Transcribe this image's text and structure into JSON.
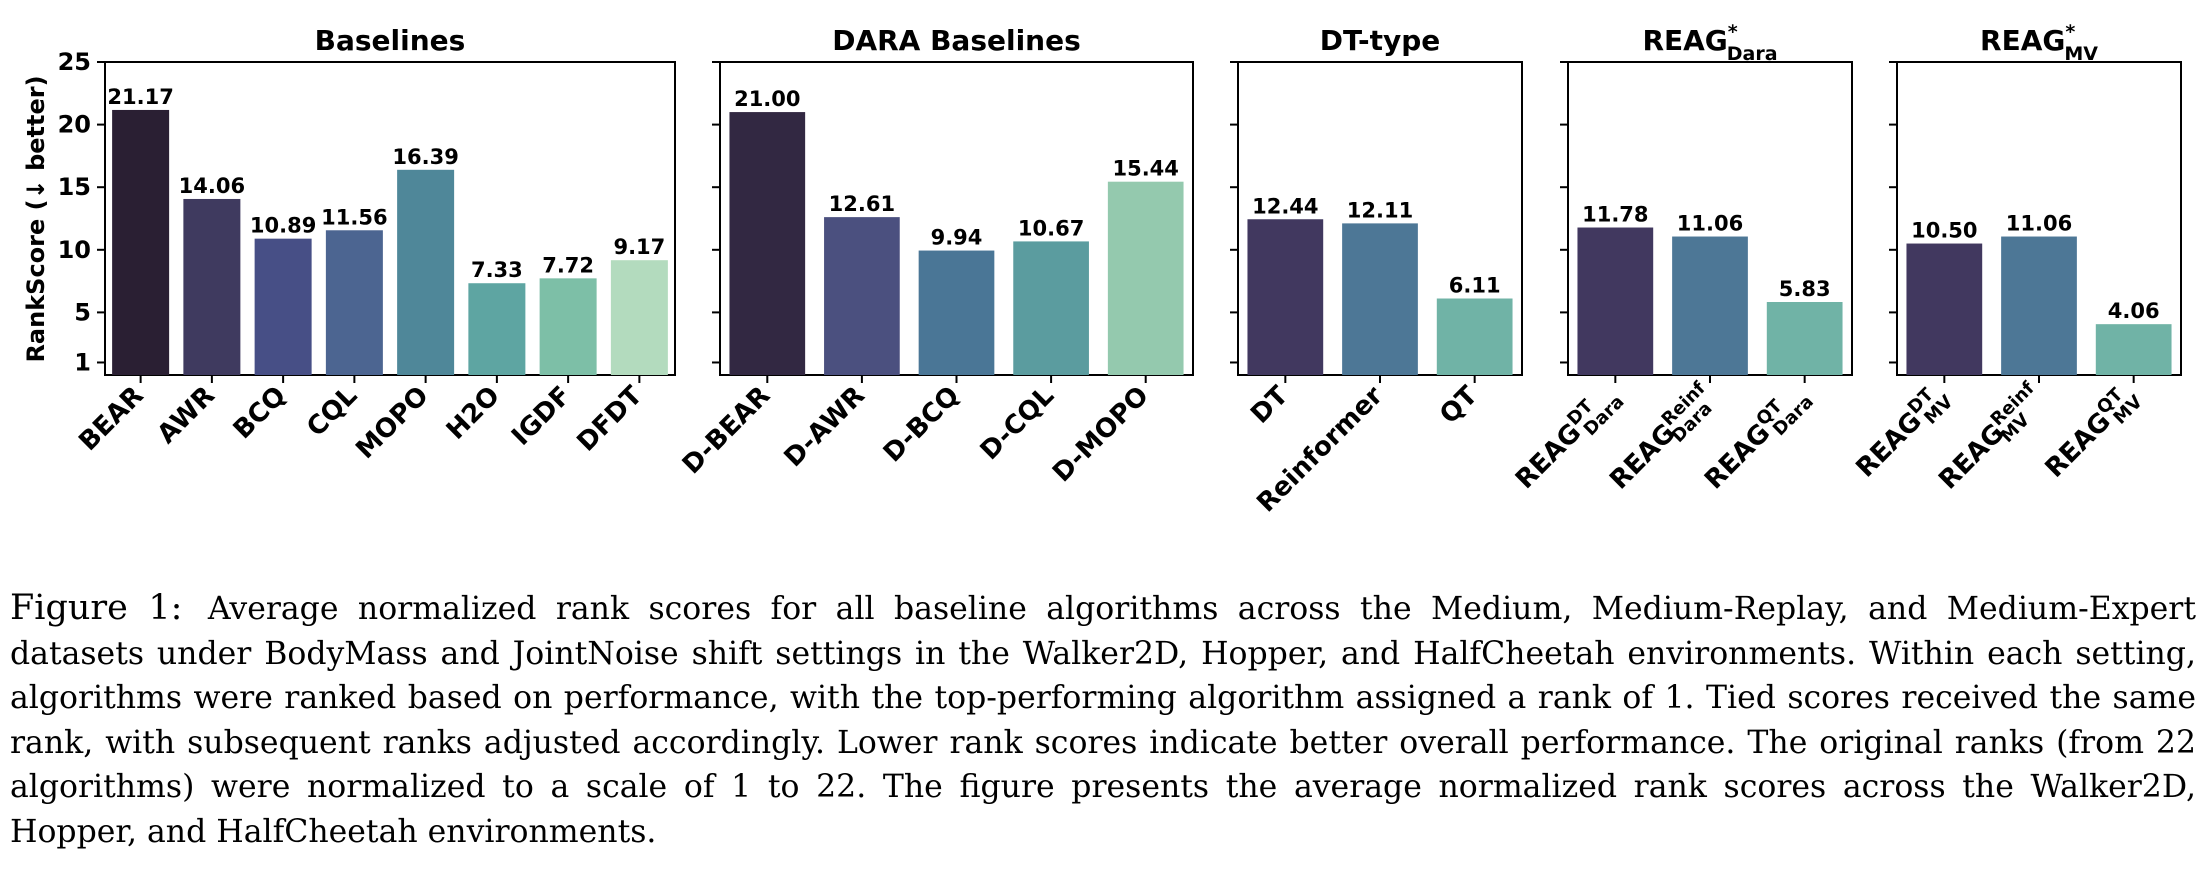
{
  "figure": {
    "ylabel": "RankScore (↓ better)",
    "yticks": [
      1,
      5,
      10,
      15,
      20,
      25
    ]
  },
  "chart_data": [
    {
      "type": "bar",
      "title": "Baselines",
      "categories": [
        "BEAR",
        "AWR",
        "BCQ",
        "CQL",
        "MOPO",
        "H2O",
        "IGDF",
        "DFDT"
      ],
      "values": [
        21.17,
        14.06,
        10.89,
        11.56,
        16.39,
        7.33,
        7.72,
        9.17
      ],
      "data_labels": [
        "21.17",
        "14.06",
        "10.89",
        "11.56",
        "16.39",
        "7.33",
        "7.72",
        "9.17"
      ],
      "colors": [
        "#2a1f33",
        "#3f3a5f",
        "#474f86",
        "#4c6591",
        "#4f8799",
        "#5ea5a2",
        "#7dbfa7",
        "#b3dbbe"
      ],
      "ylim": [
        0,
        25
      ],
      "ylabel": "RankScore (↓ better)"
    },
    {
      "type": "bar",
      "title": "DARA Baselines",
      "categories": [
        "D-BEAR",
        "D-AWR",
        "D-BCQ",
        "D-CQL",
        "D-MOPO"
      ],
      "values": [
        21.0,
        12.61,
        9.94,
        10.67,
        15.44
      ],
      "data_labels": [
        "21.00",
        "12.61",
        "9.94",
        "10.67",
        "15.44"
      ],
      "colors": [
        "#322842",
        "#4b507f",
        "#4a7696",
        "#5b9c9f",
        "#94c9ae"
      ],
      "ylim": [
        0,
        25
      ]
    },
    {
      "type": "bar",
      "title": "DT-type",
      "categories": [
        "DT",
        "Reinformer",
        "QT"
      ],
      "values": [
        12.44,
        12.11,
        6.11
      ],
      "data_labels": [
        "12.44",
        "12.11",
        "6.11"
      ],
      "colors": [
        "#41385f",
        "#4d7796",
        "#70b3a6"
      ],
      "ylim": [
        0,
        25
      ]
    },
    {
      "type": "bar",
      "title": "REAG",
      "title_sup": "*",
      "title_sub": "Dara",
      "categories": [
        "REAG",
        "REAG",
        "REAG"
      ],
      "category_sups": [
        "DT",
        "Reinf",
        "QT"
      ],
      "category_subs": [
        "Dara",
        "Dara",
        "Dara"
      ],
      "values": [
        11.78,
        11.06,
        5.83
      ],
      "data_labels": [
        "11.78",
        "11.06",
        "5.83"
      ],
      "colors": [
        "#41385f",
        "#4d7796",
        "#70b3a6"
      ],
      "ylim": [
        0,
        25
      ]
    },
    {
      "type": "bar",
      "title": "REAG",
      "title_sup": "*",
      "title_sub": "MV",
      "categories": [
        "REAG",
        "REAG",
        "REAG"
      ],
      "category_sups": [
        "DT",
        "Reinf",
        "QT"
      ],
      "category_subs": [
        "MV",
        "MV",
        "MV"
      ],
      "values": [
        10.5,
        11.06,
        4.06
      ],
      "data_labels": [
        "10.50",
        "11.06",
        "4.06"
      ],
      "colors": [
        "#41385f",
        "#4d7796",
        "#70b3a6"
      ],
      "ylim": [
        0,
        25
      ]
    }
  ],
  "caption": {
    "label": "Figure 1:",
    "text": "Average normalized rank scores for all baseline algorithms across the Medium, Medium-Replay, and Medium-Expert datasets under BodyMass and JointNoise shift settings in the Walker2D, Hopper, and HalfCheetah environments. Within each setting, algorithms were ranked based on performance, with the top-performing algorithm assigned a rank of 1. Tied scores received the same rank, with subsequent ranks adjusted accordingly. Lower rank scores indicate better overall performance. The original ranks (from 22 algorithms) were normalized to a scale of 1 to 22. The figure presents the average normalized rank scores across the Walker2D, Hopper, and HalfCheetah environments."
  }
}
